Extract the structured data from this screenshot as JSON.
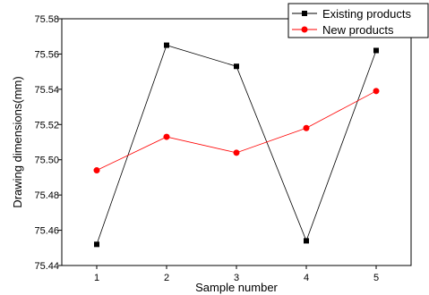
{
  "chart_data": {
    "type": "line",
    "title": "",
    "xlabel": "Sample number",
    "ylabel": "Drawing dimensions(mm)",
    "x": [
      1,
      2,
      3,
      4,
      5
    ],
    "xlim": [
      0.5,
      5.5
    ],
    "ylim": [
      75.44,
      75.58
    ],
    "yticks": [
      "75.44",
      "75.46",
      "75.48",
      "75.50",
      "75.52",
      "75.54",
      "75.56",
      "75.58"
    ],
    "xticks": [
      "1",
      "2",
      "3",
      "4",
      "5"
    ],
    "grid": false,
    "legend_position": "top-right",
    "series": [
      {
        "name": "Existing products",
        "values": [
          75.452,
          75.565,
          75.553,
          75.454,
          75.562
        ],
        "color": "#000000",
        "marker": "square"
      },
      {
        "name": "New products",
        "values": [
          75.494,
          75.513,
          75.504,
          75.518,
          75.539
        ],
        "color": "#ff0000",
        "marker": "circle"
      }
    ]
  }
}
